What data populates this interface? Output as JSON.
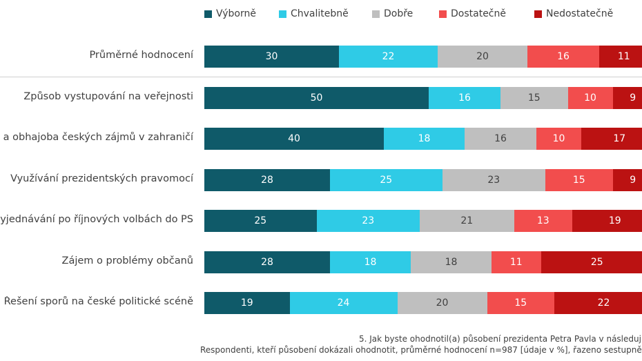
{
  "chart_data": {
    "type": "bar",
    "orientation": "horizontal-stacked",
    "legend_position": "top",
    "series": [
      {
        "name": "Výborně",
        "color": "#0f5a69",
        "values": [
          30,
          50,
          40,
          28,
          25,
          28,
          19
        ]
      },
      {
        "name": "Chvalitebně",
        "color": "#2fcbe6",
        "values": [
          22,
          16,
          18,
          25,
          23,
          18,
          24
        ]
      },
      {
        "name": "Dobře",
        "color": "#bfbfbf",
        "values": [
          20,
          15,
          16,
          23,
          21,
          18,
          20
        ]
      },
      {
        "name": "Dostatečně",
        "color": "#f24d4d",
        "values": [
          16,
          10,
          10,
          15,
          13,
          11,
          15
        ]
      },
      {
        "name": "Nedostatečně",
        "color": "#bb1212",
        "values": [
          11,
          9,
          17,
          9,
          19,
          25,
          22
        ]
      }
    ],
    "categories": [
      "Průměrné hodnocení",
      "Způsob vystupování na veřejnosti",
      "e a obhajoba českých zájmů v zahraničí",
      "Využívání prezidentských pravomocí",
      "vyjednávání po říjnových volbách do PS",
      "Zájem o problémy občanů",
      "Řešení sporů na české politické scéně"
    ],
    "footnote": [
      "5. Jak byste ohodnotil(a) působení prezidenta Petra Pavla v následují",
      "Respondenti, kteří působení dokázali ohodnotit, průměrné hodnocení n=987 [údaje v %], řazeno sestupně"
    ]
  }
}
